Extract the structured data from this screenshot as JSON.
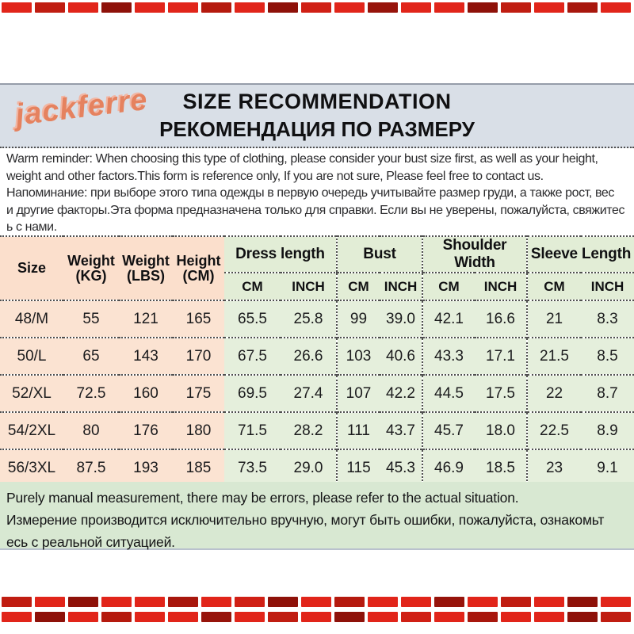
{
  "header": {
    "logo": "jackferre",
    "title_en": "SIZE RECOMMENDATION",
    "title_ru": "РЕКОМЕНДАЦИЯ ПО РАЗМЕРУ"
  },
  "reminder": {
    "lines": [
      "Warm reminder: When choosing this type of clothing, please consider your bust size first, as well as your height,",
      "weight and other factors.This form is reference only, If you are not sure, Please feel free to contact us.",
      "Напоминание: при выборе этого типа одежды в первую очередь учитывайте размер груди, а также рост, вес",
      "и другие факторы.Эта форма предназначена только для справки. Если вы не уверены, пожалуйста, свяжитес",
      "ь с нами."
    ]
  },
  "table": {
    "left_headers": [
      {
        "line1": "Size"
      },
      {
        "line1": "Weight",
        "line2": "(KG)"
      },
      {
        "line1": "Weight",
        "line2": "(LBS)"
      },
      {
        "line1": "Height",
        "line2": "(CM)"
      }
    ],
    "groups": [
      "Dress length",
      "Bust",
      "Shoulder Width",
      "Sleeve Length"
    ],
    "unit_cm": "CM",
    "unit_inch": "INCH",
    "rows": [
      {
        "cells": [
          "48/M",
          "55",
          "121",
          "165",
          "65.5",
          "25.8",
          "99",
          "39.0",
          "42.1",
          "16.6",
          "21",
          "8.3"
        ]
      },
      {
        "cells": [
          "50/L",
          "65",
          "143",
          "170",
          "67.5",
          "26.6",
          "103",
          "40.6",
          "43.3",
          "17.1",
          "21.5",
          "8.5"
        ]
      },
      {
        "cells": [
          "52/XL",
          "72.5",
          "160",
          "175",
          "69.5",
          "27.4",
          "107",
          "42.2",
          "44.5",
          "17.5",
          "22",
          "8.7"
        ]
      },
      {
        "cells": [
          "54/2XL",
          "80",
          "176",
          "180",
          "71.5",
          "28.2",
          "111",
          "43.7",
          "45.7",
          "18.0",
          "22.5",
          "8.9"
        ]
      },
      {
        "cells": [
          "56/3XL",
          "87.5",
          "193",
          "185",
          "73.5",
          "29.0",
          "115",
          "45.3",
          "46.9",
          "18.5",
          "23",
          "9.1"
        ]
      }
    ]
  },
  "footer": {
    "lines": [
      "Purely manual measurement, there may be errors, please refer to the actual situation.",
      "Измерение производится исключительно вручную, могут быть ошибки, пожалуйста, ознакомьт",
      "есь с реальной ситуацией."
    ]
  },
  "colors": {
    "band_blue_gray": "#d9dfe7",
    "footer_green": "#d8e8d2",
    "header_peach": "#fbdfcc",
    "header_green": "#e2edd6",
    "body_peach": "#fbe3d2",
    "body_green": "#e5efdc",
    "logo_coral": "#e5825f",
    "dash_bright_red": "#e1251a",
    "dash_mid_red": "#c01d11",
    "dash_dark_red": "#8e1109"
  },
  "border_dashes": {
    "top": [
      "#e1251a",
      "#c01d11",
      "#e1251a",
      "#8e1109",
      "#e1251a",
      "#e1251a",
      "#b51a0e",
      "#e1251a",
      "#8e1109",
      "#d02015",
      "#e1251a",
      "#97140b",
      "#e1251a",
      "#e1251a",
      "#8e1109",
      "#c01d11",
      "#e1251a",
      "#a8170d",
      "#e1251a"
    ],
    "bottom1": [
      "#c01d11",
      "#e1251a",
      "#8e1109",
      "#e1251a",
      "#e1251a",
      "#a8170d",
      "#e1251a",
      "#d02015",
      "#8e1109",
      "#e1251a",
      "#b51a0e",
      "#e1251a",
      "#e1251a",
      "#97140b",
      "#e1251a",
      "#c01d11",
      "#e1251a",
      "#8e1109",
      "#e1251a"
    ],
    "bottom2": [
      "#e1251a",
      "#8e1109",
      "#e1251a",
      "#b51a0e",
      "#e1251a",
      "#e1251a",
      "#97140b",
      "#e1251a",
      "#c01d11",
      "#e1251a",
      "#8e1109",
      "#e1251a",
      "#d02015",
      "#e1251a",
      "#a8170d",
      "#e1251a",
      "#e1251a",
      "#8e1109",
      "#c01d11"
    ]
  }
}
